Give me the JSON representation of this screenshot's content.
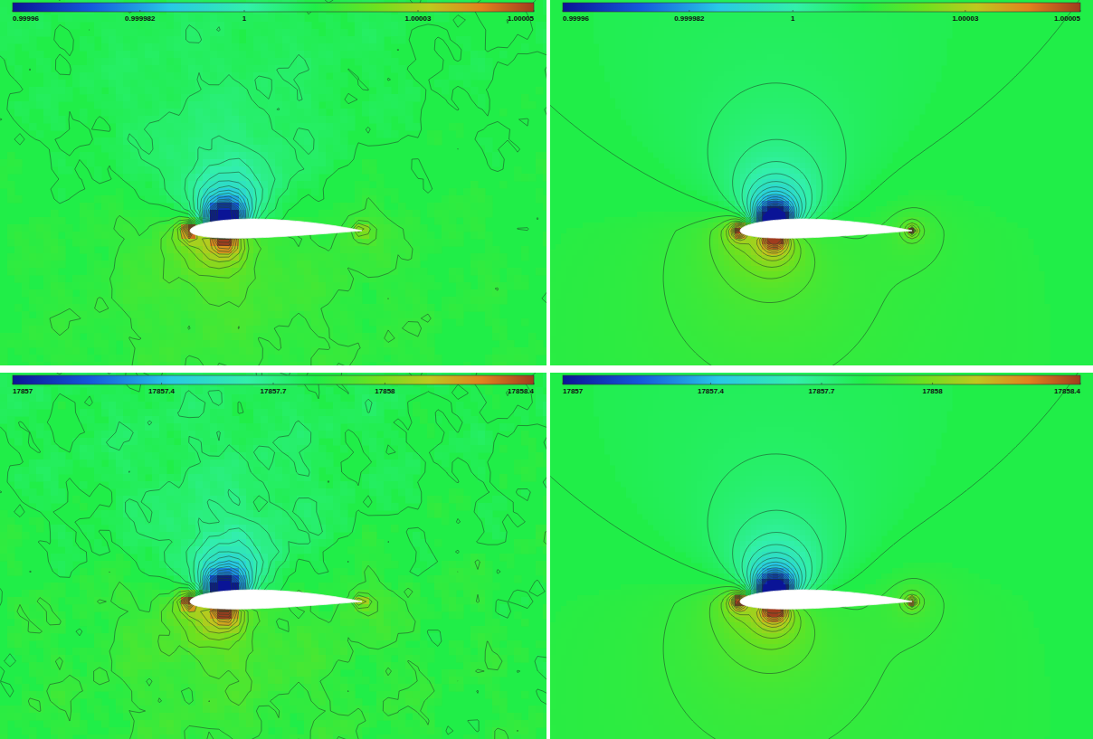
{
  "chart_data": [
    {
      "type": "contour",
      "colorbar_lim": [
        0.99996,
        1.00005
      ],
      "colorbar_ticks": [
        0.99996,
        0.999982,
        1,
        1.00003,
        1.00005
      ]
    },
    {
      "type": "contour",
      "colorbar_lim": [
        0.99996,
        1.00005
      ],
      "colorbar_ticks": [
        0.99996,
        0.999982,
        1,
        1.00003,
        1.00005
      ]
    },
    {
      "type": "contour",
      "colorbar_lim": [
        17857,
        17858.4
      ],
      "colorbar_ticks": [
        17857,
        17857.4,
        17857.7,
        17858,
        17858.4
      ]
    },
    {
      "type": "contour",
      "colorbar_lim": [
        17857,
        17858.4
      ],
      "colorbar_ticks": [
        17857,
        17857.4,
        17857.7,
        17858,
        17858.4
      ]
    }
  ]
}
